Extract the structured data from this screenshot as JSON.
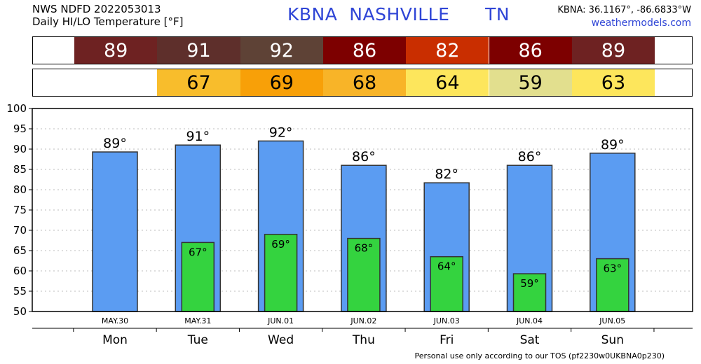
{
  "header": {
    "line1": "NWS NDFD 2022053013",
    "line2": "Daily HI/LO Temperature [°F]",
    "station": "KBNA",
    "city": "NASHVILLE",
    "state": "TN",
    "coords": "KBNA: 36.1167°, -86.6833°W",
    "website": "weathermodels.com"
  },
  "hi_strip": [
    {
      "value": "89",
      "color": "#6e2222"
    },
    {
      "value": "91",
      "color": "#5e2f2b"
    },
    {
      "value": "92",
      "color": "#5e4236"
    },
    {
      "value": "86",
      "color": "#7d0000"
    },
    {
      "value": "82",
      "color": "#c92e00"
    },
    {
      "value": "86",
      "color": "#7d0000"
    },
    {
      "value": "89",
      "color": "#6e2222"
    }
  ],
  "lo_strip": [
    {
      "value": "",
      "color": "#ffffff"
    },
    {
      "value": "67",
      "color": "#f8bd2c"
    },
    {
      "value": "69",
      "color": "#f8a008"
    },
    {
      "value": "68",
      "color": "#f8b428"
    },
    {
      "value": "64",
      "color": "#fde65c"
    },
    {
      "value": "59",
      "color": "#e2df8e"
    },
    {
      "value": "63",
      "color": "#fde65c"
    }
  ],
  "chart_data": {
    "type": "bar",
    "categories": [
      "Mon",
      "Tue",
      "Wed",
      "Thu",
      "Fri",
      "Sat",
      "Sun"
    ],
    "dates": [
      "MAY.30",
      "MAY.31",
      "JUN.01",
      "JUN.02",
      "JUN.03",
      "JUN.04",
      "JUN.05"
    ],
    "series": [
      {
        "values": [
          89.3,
          91,
          92,
          86,
          81.7,
          86,
          89
        ],
        "labels": [
          "89°",
          "91°",
          "92°",
          "86°",
          "82°",
          "86°",
          "89°"
        ],
        "color": "#5b9cf2"
      },
      {
        "values": [
          null,
          67,
          69,
          68,
          63.5,
          59.3,
          63
        ],
        "labels": [
          "",
          "67°",
          "69°",
          "68°",
          "64°",
          "59°",
          "63°"
        ],
        "color": "#34d33f"
      }
    ],
    "yticks": [
      50,
      55,
      60,
      65,
      70,
      75,
      80,
      85,
      90,
      95,
      100
    ],
    "ylim": [
      50,
      100
    ],
    "grid": true
  },
  "footer": "Personal use only according to our TOS (pf2230w0UKBNA0p230)"
}
